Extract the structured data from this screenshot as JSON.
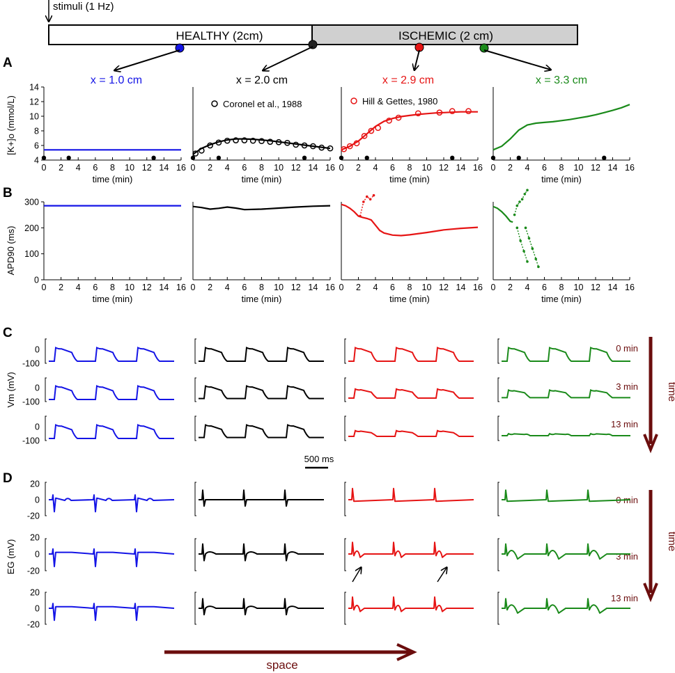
{
  "colors": {
    "blue": "#1414e6",
    "black": "#000000",
    "red": "#e61414",
    "green": "#1a8a1a",
    "maroon": "#6b0d0d",
    "ischemic_fill": "#d0d0d0"
  },
  "header": {
    "stimuli_label": "stimuli (1 Hz)",
    "healthy_label": "HEALTHY (2cm)",
    "ischemic_label": "ISCHEMIC (2 cm)"
  },
  "panel_letters": {
    "A": "A",
    "B": "B",
    "C": "C",
    "D": "D"
  },
  "positions": [
    "x = 1.0 cm",
    "x = 2.0 cm",
    "x = 2.9 cm",
    "x = 3.3 cm"
  ],
  "time_labels": [
    "0 min",
    "3 min",
    "13 min"
  ],
  "labels": {
    "time_axis": "time",
    "space_axis": "space",
    "scale_bar": "500 ms",
    "xlabel": "time (min)",
    "ylabel_A": "[K+]o (mmol/L)",
    "ylabel_B": "APD90 (ms)",
    "ylabel_C": "Vm (mV)",
    "ylabel_D": "EG (mV)"
  },
  "chart_data": [
    {
      "type": "line",
      "panel": "A",
      "ylabel": "[K+]o (mmol/L)",
      "xlabel": "time (min)",
      "xlim": [
        0,
        16
      ],
      "ylim": [
        4,
        14
      ],
      "xticks": [
        0,
        2,
        4,
        6,
        8,
        10,
        12,
        14,
        16
      ],
      "yticks": [
        4,
        6,
        8,
        10,
        12,
        14
      ],
      "series": [
        {
          "position": "x = 1.0 cm",
          "x": [
            0,
            16
          ],
          "y": [
            5.4,
            5.4
          ]
        },
        {
          "position": "x = 2.0 cm",
          "x": [
            0,
            1,
            2,
            3,
            4,
            5,
            6,
            7,
            8,
            9,
            10,
            11,
            12,
            13,
            14,
            15,
            16
          ],
          "y": [
            4.8,
            5.6,
            6.1,
            6.5,
            6.75,
            6.9,
            6.9,
            6.85,
            6.75,
            6.65,
            6.5,
            6.35,
            6.2,
            6.05,
            5.9,
            5.75,
            5.6
          ]
        },
        {
          "position": "x = 2.9 cm",
          "x": [
            0,
            1,
            2,
            3,
            4,
            5,
            6,
            7,
            8,
            9,
            10,
            11,
            12,
            13,
            14,
            15,
            16
          ],
          "y": [
            5.4,
            5.9,
            6.6,
            7.6,
            8.6,
            9.3,
            9.7,
            9.95,
            10.1,
            10.25,
            10.35,
            10.45,
            10.5,
            10.55,
            10.6,
            10.6,
            10.6
          ]
        },
        {
          "position": "x = 3.3 cm",
          "x": [
            0,
            1,
            2,
            3,
            4,
            5,
            6,
            7,
            8,
            9,
            10,
            11,
            12,
            13,
            14,
            15,
            16
          ],
          "y": [
            5.4,
            5.9,
            6.9,
            8.1,
            8.8,
            9.05,
            9.15,
            9.25,
            9.4,
            9.55,
            9.75,
            9.95,
            10.2,
            10.5,
            10.8,
            11.15,
            11.6
          ]
        }
      ],
      "experimental": [
        {
          "name": "Coronel et al., 1988",
          "position": "x = 2.0 cm",
          "x": [
            0.3,
            1,
            2,
            3,
            4,
            5,
            6,
            7,
            8,
            9,
            10,
            11,
            12,
            13,
            14,
            15,
            16
          ],
          "y": [
            4.9,
            5.3,
            6.0,
            6.4,
            6.65,
            6.7,
            6.7,
            6.65,
            6.6,
            6.5,
            6.45,
            6.35,
            6.1,
            6.0,
            5.9,
            5.7,
            5.6
          ]
        },
        {
          "name": "Hill & Gettes, 1980",
          "position": "x = 2.9 cm",
          "x": [
            0.3,
            1,
            1.8,
            2.7,
            3.5,
            4.3,
            5.6,
            6.7,
            9,
            11.5,
            13,
            14.9
          ],
          "y": [
            5.5,
            5.9,
            6.3,
            7.3,
            8.0,
            8.4,
            9.4,
            9.8,
            10.4,
            10.5,
            10.7,
            10.7
          ]
        }
      ],
      "stimulus_markers_min": [
        [
          0,
          2.9,
          12.8
        ],
        [
          0,
          3,
          13
        ],
        [
          0,
          3,
          13
        ],
        [
          0,
          3,
          13
        ]
      ]
    },
    {
      "type": "line",
      "panel": "B",
      "ylabel": "APD90 (ms)",
      "xlabel": "time (min)",
      "xlim": [
        0,
        16
      ],
      "ylim": [
        0,
        300
      ],
      "xticks": [
        0,
        2,
        4,
        6,
        8,
        10,
        12,
        14,
        16
      ],
      "yticks": [
        0,
        100,
        200,
        300
      ],
      "series": [
        {
          "position": "x = 1.0 cm",
          "x": [
            0,
            16
          ],
          "y": [
            285,
            285
          ]
        },
        {
          "position": "x = 2.0 cm",
          "x": [
            0,
            1,
            2,
            3,
            4,
            5,
            6,
            8,
            10,
            12,
            14,
            16
          ],
          "y": [
            282,
            278,
            272,
            275,
            280,
            276,
            270,
            272,
            276,
            280,
            283,
            285
          ]
        },
        {
          "position": "x = 2.9 cm",
          "x": [
            0,
            0.5,
            1,
            1.5,
            2,
            2.5,
            3,
            3.5,
            4,
            4.5,
            5,
            5.5,
            6,
            7,
            8,
            10,
            12,
            14,
            16
          ],
          "y": [
            290,
            285,
            275,
            262,
            245,
            240,
            236,
            230,
            210,
            190,
            180,
            176,
            172,
            170,
            173,
            182,
            192,
            198,
            202
          ]
        },
        {
          "position": "x = 3.3 cm",
          "x": [
            0,
            0.5,
            1,
            1.5,
            2,
            2.3
          ],
          "y": [
            282,
            275,
            262,
            245,
            225,
            222
          ]
        }
      ],
      "alternans": [
        {
          "position": "x = 2.9 cm",
          "x": [
            2.2,
            2.6,
            3.0,
            3.4,
            3.8
          ],
          "y": [
            245,
            300,
            320,
            310,
            325
          ]
        },
        {
          "position": "x = 3.3 cm",
          "x": [
            2.5,
            2.8,
            3.1,
            3.4,
            3.7,
            4.0
          ],
          "y": [
            250,
            285,
            300,
            310,
            330,
            345
          ]
        },
        {
          "position": "x = 3.3 cm",
          "x": [
            2.8,
            3.2,
            3.6,
            4.0
          ],
          "y": [
            200,
            150,
            110,
            70
          ]
        },
        {
          "position": "x = 3.3 cm",
          "x": [
            3.8,
            4.2,
            4.6,
            5.0,
            5.3
          ],
          "y": [
            200,
            160,
            120,
            80,
            50
          ]
        }
      ]
    },
    {
      "type": "line",
      "panel": "C",
      "ylabel": "Vm (mV)",
      "yticks": [
        0,
        -100
      ],
      "rows": [
        "0 min",
        "3 min",
        "13 min"
      ],
      "scale_bar_ms": 500,
      "amplitude_fraction": [
        [
          1,
          1,
          1,
          1
        ],
        [
          1,
          1,
          0.75,
          0.65
        ],
        [
          1,
          1,
          0.5,
          0.18
        ]
      ],
      "resting_mV": [
        [
          -85,
          -85,
          -85,
          -85
        ],
        [
          -85,
          -78,
          -75,
          -72
        ],
        [
          -85,
          -78,
          -70,
          -65
        ]
      ]
    },
    {
      "type": "line",
      "panel": "D",
      "ylabel": "EG (mV)",
      "yticks": [
        20,
        0,
        -20
      ],
      "rows": [
        "0 min",
        "3 min",
        "13 min"
      ]
    }
  ]
}
